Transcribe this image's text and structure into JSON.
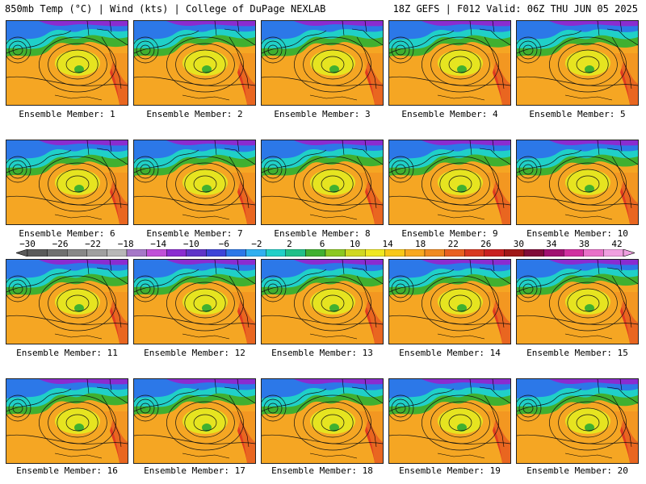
{
  "header": {
    "left": "850mb Temp (°C) | Wind (kts) | College of DuPage NEXLAB",
    "right": "18Z GEFS | F012 Valid: 06Z THU JUN 05 2025"
  },
  "panels": [
    {
      "caption": "Ensemble Member: 1"
    },
    {
      "caption": "Ensemble Member: 2"
    },
    {
      "caption": "Ensemble Member: 3"
    },
    {
      "caption": "Ensemble Member: 4"
    },
    {
      "caption": "Ensemble Member: 5"
    },
    {
      "caption": "Ensemble Member: 6"
    },
    {
      "caption": "Ensemble Member: 7"
    },
    {
      "caption": "Ensemble Member: 8"
    },
    {
      "caption": "Ensemble Member: 9"
    },
    {
      "caption": "Ensemble Member: 10"
    },
    {
      "caption": "Ensemble Member: 11"
    },
    {
      "caption": "Ensemble Member: 12"
    },
    {
      "caption": "Ensemble Member: 13"
    },
    {
      "caption": "Ensemble Member: 14"
    },
    {
      "caption": "Ensemble Member: 15"
    },
    {
      "caption": "Ensemble Member: 16"
    },
    {
      "caption": "Ensemble Member: 17"
    },
    {
      "caption": "Ensemble Member: 18"
    },
    {
      "caption": "Ensemble Member: 19"
    },
    {
      "caption": "Ensemble Member: 20"
    }
  ],
  "colorbar": {
    "ticks": [
      "−30",
      "−26",
      "−22",
      "−18",
      "−14",
      "−10",
      "−6",
      "−2",
      "2",
      "6",
      "10",
      "14",
      "18",
      "22",
      "26",
      "30",
      "34",
      "38",
      "42"
    ],
    "colors": [
      "#5a5a5a",
      "#707070",
      "#888888",
      "#a0a0a0",
      "#b8b8b8",
      "#a678c8",
      "#c050d8",
      "#8a2cd0",
      "#5f34c8",
      "#3c44d8",
      "#2c78e8",
      "#30b0f0",
      "#20d0c8",
      "#20c088",
      "#40b030",
      "#8cc820",
      "#d0d820",
      "#f0e820",
      "#f8c818",
      "#f8a820",
      "#f08a20",
      "#e86020",
      "#d83820",
      "#c82020",
      "#a01818",
      "#800c38",
      "#a01070",
      "#d030a0",
      "#e870c8",
      "#f0a0e0"
    ]
  },
  "map_colors": {
    "cold": "#8a2cd0",
    "cool": "#2c78e8",
    "mild": "#20d0c8",
    "green": "#40b030",
    "yellow": "#e6e420",
    "orange": "#f5a623",
    "warm": "#f08a20",
    "hot": "#e03a20",
    "contour": "#111111",
    "coast": "#000000"
  }
}
